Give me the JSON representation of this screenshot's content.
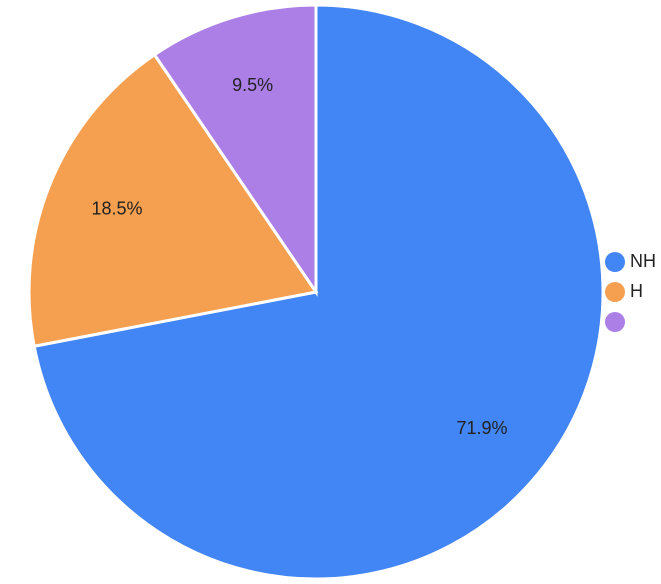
{
  "chart_data": {
    "type": "pie",
    "categories": [
      "NH",
      "H",
      null
    ],
    "values": [
      71.9,
      18.5,
      9.5
    ],
    "value_labels": [
      "71.9%",
      "18.5%",
      "9.5%"
    ],
    "colors": [
      "#4285f4",
      "#f4a050",
      "#ab7fe6"
    ],
    "legend": "right"
  }
}
